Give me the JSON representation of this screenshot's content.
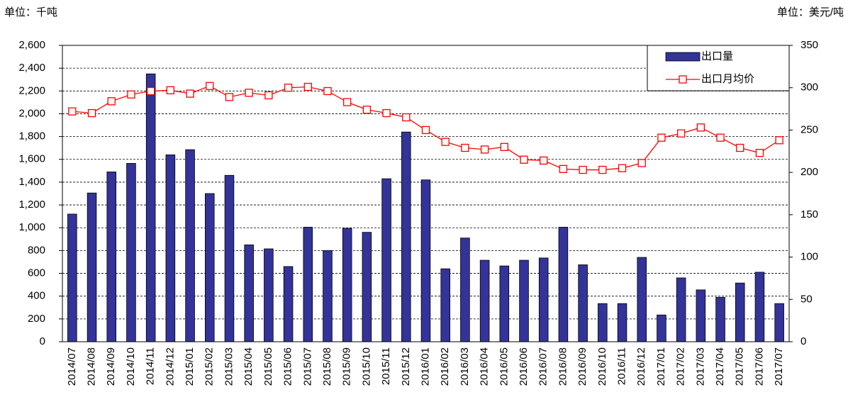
{
  "chart_data": {
    "type": "bar_line",
    "left_unit": "单位：千吨",
    "right_unit": "单位：美元/吨",
    "categories": [
      "2014/07",
      "2014/08",
      "2014/09",
      "2014/10",
      "2014/11",
      "2014/12",
      "2015/01",
      "2015/02",
      "2015/03",
      "2015/04",
      "2015/05",
      "2015/06",
      "2015/07",
      "2015/08",
      "2015/09",
      "2015/10",
      "2015/11",
      "2015/12",
      "2016/01",
      "2016/02",
      "2016/03",
      "2016/04",
      "2016/05",
      "2016/06",
      "2016/07",
      "2016/08",
      "2016/09",
      "2016/10",
      "2016/11",
      "2016/12",
      "2017/01",
      "2017/02",
      "2017/03",
      "2017/04",
      "2017/05",
      "2017/06",
      "2017/07"
    ],
    "series": [
      {
        "name": "出口量",
        "type": "bar",
        "color": "#333399",
        "values": [
          1120,
          1305,
          1490,
          1565,
          2350,
          1640,
          1685,
          1300,
          1460,
          850,
          815,
          660,
          1005,
          800,
          995,
          960,
          1430,
          1840,
          1420,
          640,
          910,
          715,
          665,
          715,
          735,
          1005,
          675,
          335,
          335,
          740,
          235,
          560,
          455,
          390,
          515,
          610,
          335
        ]
      },
      {
        "name": "出口月均价",
        "type": "line",
        "axis": "y2",
        "color": "#ff0000",
        "values": [
          272,
          270,
          284,
          292,
          296,
          297,
          293,
          302,
          289,
          294,
          291,
          300,
          301,
          296,
          283,
          274,
          270,
          265,
          250,
          236,
          229,
          227,
          230,
          215,
          214,
          204,
          203,
          203,
          205,
          211,
          241,
          246,
          253,
          241,
          229,
          223,
          238
        ]
      }
    ],
    "ylim": [
      0,
      2600
    ],
    "yticks": [
      0,
      200,
      400,
      600,
      800,
      {
        "value": 1000,
        "label": "1,000"
      },
      {
        "value": 1200,
        "label": "1,200"
      },
      {
        "value": 1400,
        "label": "1,400"
      },
      {
        "value": 1600,
        "label": "1,600"
      },
      {
        "value": 1800,
        "label": "1,800"
      },
      {
        "value": 2000,
        "label": "2,000"
      },
      {
        "value": 2200,
        "label": "2,200"
      },
      {
        "value": 2400,
        "label": "2,400"
      },
      {
        "value": 2600,
        "label": "2,600"
      }
    ],
    "y2lim": [
      0,
      350
    ],
    "y2ticks": [
      0,
      50,
      100,
      150,
      200,
      250,
      300,
      350
    ],
    "grid": true,
    "legend": "top-right"
  }
}
